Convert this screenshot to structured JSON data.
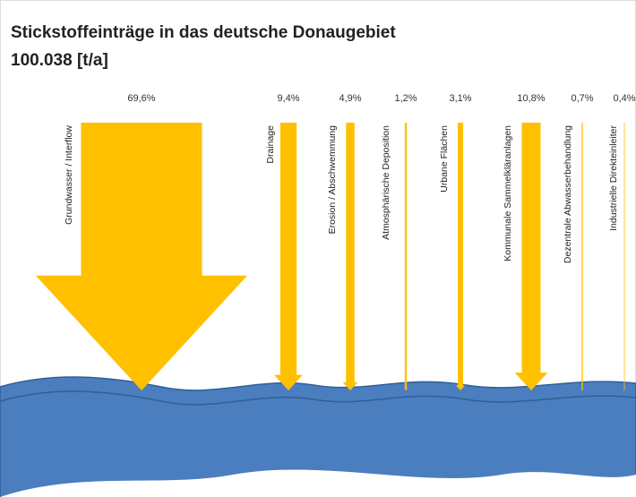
{
  "chart_data": {
    "type": "arrow",
    "title": "Stickstoffeinträge in das deutsche Donaugebiet",
    "subtitle": "100.038 [t/a]",
    "categories": [
      "Grundwasser / Interflow",
      "Drainage",
      "Erosion / Abschwemmung",
      "Atmosphärische Deposition",
      "Urbane Flächen",
      "Kommunale Sammelkläranlagen",
      "Dezentrale Abwasserbehandlung",
      "Industrielle Direkteinleiter"
    ],
    "values": [
      69.6,
      9.4,
      4.9,
      1.2,
      3.1,
      10.8,
      0.7,
      0.4
    ],
    "value_labels": [
      "69,6%",
      "9,4%",
      "4,9%",
      "1,2%",
      "3,1%",
      "10,8%",
      "0,7%",
      "0,4%"
    ],
    "color": "#ffc000"
  }
}
